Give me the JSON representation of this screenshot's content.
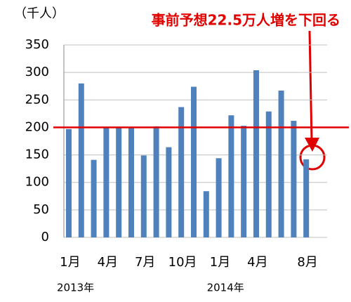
{
  "chart_data": {
    "type": "bar",
    "unit_label": "（千人）",
    "annotation": "事前予想22.5万人増を下回る",
    "categories": [
      "1月",
      null,
      null,
      "4月",
      null,
      null,
      "7月",
      null,
      null,
      "10月",
      null,
      null,
      "1月",
      null,
      null,
      "4月",
      null,
      null,
      null,
      "8月"
    ],
    "values": [
      197,
      280,
      141,
      200,
      200,
      200,
      149,
      202,
      164,
      237,
      274,
      84,
      144,
      222,
      203,
      304,
      229,
      267,
      212,
      142
    ],
    "year_labels": [
      "2013年",
      "2014年"
    ],
    "color": "#4f81bd",
    "reference_line": 200,
    "reference_color": "#e00000",
    "ylim": [
      0,
      350
    ],
    "yticks": [
      0,
      50,
      100,
      150,
      200,
      250,
      300,
      350
    ],
    "grid": true
  }
}
